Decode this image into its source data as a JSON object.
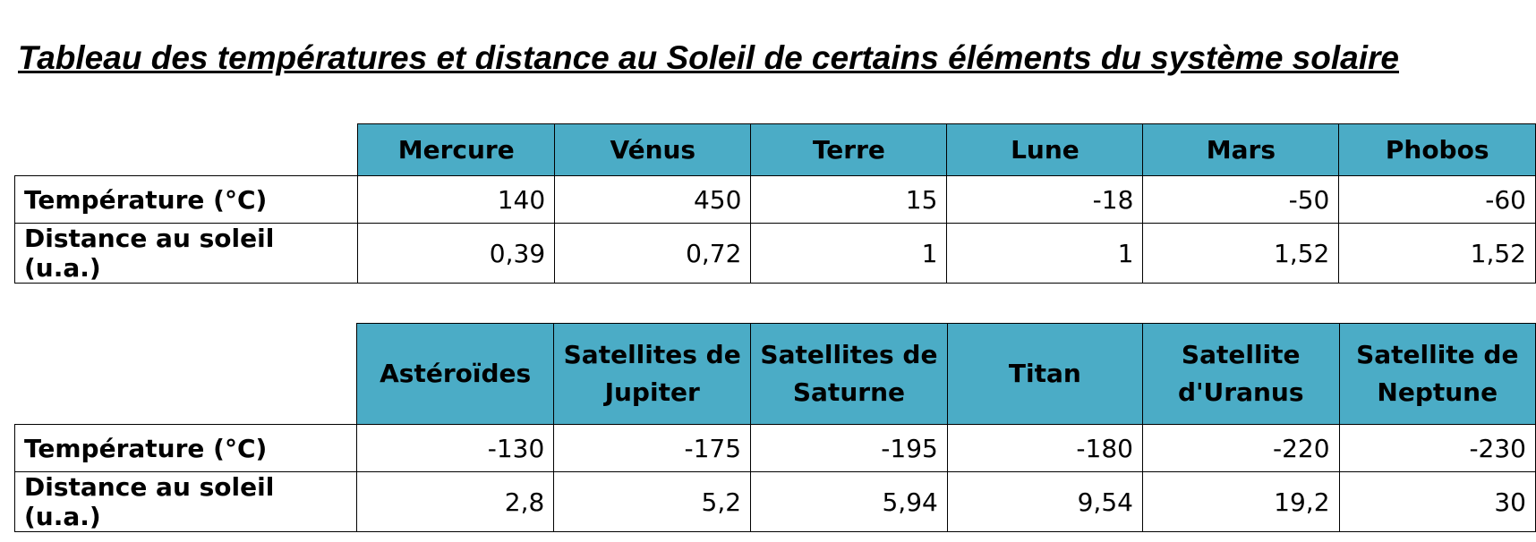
{
  "title": "Tableau des températures et distance au Soleil de certains éléments du système solaire",
  "tables": [
    {
      "headers": [
        "Mercure",
        "Vénus",
        "Terre",
        "Lune",
        "Mars",
        "Phobos"
      ],
      "rows": [
        {
          "label": "Température (°C)",
          "cells": [
            "140",
            "450",
            "15",
            "-18",
            "-50",
            "-60"
          ]
        },
        {
          "label": "Distance au soleil (u.a.)",
          "cells": [
            "0,39",
            "0,72",
            "1",
            "1",
            "1,52",
            "1,52"
          ]
        }
      ]
    },
    {
      "headers": [
        "Astéroïdes",
        "Satellites de Jupiter",
        "Satellites de Saturne",
        "Titan",
        "Satellite d'Uranus",
        "Satellite de Neptune"
      ],
      "rows": [
        {
          "label": "Température (°C)",
          "cells": [
            "-130",
            "-175",
            "-195",
            "-180",
            "-220",
            "-230"
          ]
        },
        {
          "label": "Distance au soleil (u.a.)",
          "cells": [
            "2,8",
            "5,2",
            "5,94",
            "9,54",
            "19,2",
            "30"
          ]
        }
      ]
    }
  ]
}
